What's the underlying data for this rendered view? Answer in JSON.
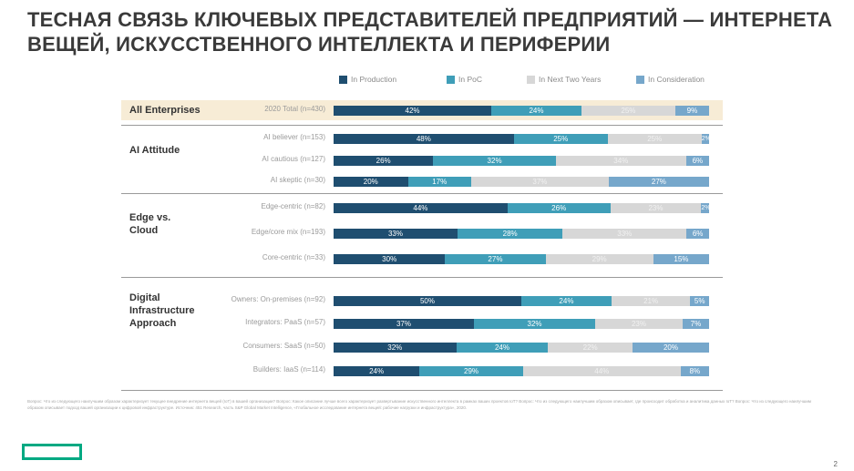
{
  "title": "ТЕСНАЯ СВЯЗЬ КЛЮЧЕВЫХ ПРЕДСТАВИТЕЛЕЙ ПРЕДПРИЯТИЙ — ИНТЕРНЕТА ВЕЩЕЙ, ИСКУССТВЕННОГО ИНТЕЛЛЕКТА И ПЕРИФЕРИИ",
  "page_number": "2",
  "footnote": "Вопрос: Что из следующего наилучшим образом характеризует текущее внедрение интернета вещей (IoT) в вашей организации? Вопрос: Какое описание лучше всего характеризует развертывание искусственного интеллекта в рамках ваших проектов IoT? Вопрос: Что из следующего наилучшим образом описывает, где происходит обработка и аналитика данных IoT? Вопрос: Что из следующего наилучшим образом описывает подход вашей организации к цифровой инфраструктуре. Источник: 451 Research, часть S&P Global Market Intelligence, «Глобальное исследование интернета вещей: рабочие нагрузки и инфраструктура», 2020.",
  "colors": {
    "in_production": "#1f4e70",
    "in_poc": "#3f9eb8",
    "next_two_years": "#d7d7d7",
    "consideration": "#76a7cb",
    "highlight": "#f7ecd6",
    "logo": "#01a982"
  },
  "chart_data": {
    "type": "bar",
    "orientation": "horizontal",
    "stacked": true,
    "xlim": [
      0,
      100
    ],
    "legend": {
      "position": "top",
      "items": [
        "In Production",
        "In PoC",
        "In Next Two Years",
        "In Consideration"
      ]
    },
    "groups": [
      {
        "label": "All Enterprises",
        "highlighted": true
      },
      {
        "label": "AI Attitude"
      },
      {
        "label": "Edge vs. Cloud"
      },
      {
        "label": "Digital Infrastructure Approach"
      }
    ],
    "categories": [
      "2020 Total (n=430)",
      "AI believer (n=153)",
      "AI cautious (n=127)",
      "AI skeptic (n=30)",
      "Edge-centric (n=82)",
      "Edge/core mix (n=193)",
      "Core-centric (n=33)",
      "Owners: On-premises (n=92)",
      "Integrators: PaaS (n=57)",
      "Consumers: SaaS (n=50)",
      "Builders: IaaS (n=114)"
    ],
    "series": [
      {
        "name": "In Production",
        "values": [
          42,
          48,
          26,
          20,
          44,
          33,
          30,
          50,
          37,
          32,
          24
        ]
      },
      {
        "name": "In PoC",
        "values": [
          24,
          25,
          32,
          17,
          26,
          28,
          27,
          24,
          32,
          24,
          29
        ]
      },
      {
        "name": "In Next Two Years",
        "values": [
          25,
          25,
          34,
          37,
          23,
          33,
          29,
          21,
          23,
          22,
          44
        ]
      },
      {
        "name": "In Consideration",
        "values": [
          9,
          2,
          6,
          27,
          2,
          6,
          15,
          5,
          7,
          20,
          8
        ]
      }
    ]
  }
}
